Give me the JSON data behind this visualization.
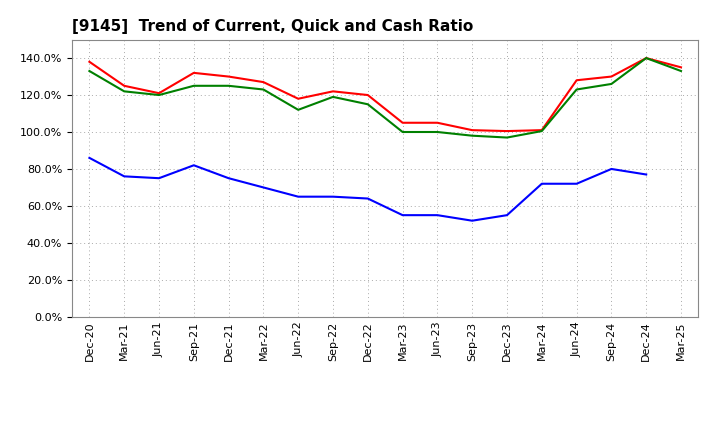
{
  "title": "[9145]  Trend of Current, Quick and Cash Ratio",
  "x_labels": [
    "Dec-20",
    "Mar-21",
    "Jun-21",
    "Sep-21",
    "Dec-21",
    "Mar-22",
    "Jun-22",
    "Sep-22",
    "Dec-22",
    "Mar-23",
    "Jun-23",
    "Sep-23",
    "Dec-23",
    "Mar-24",
    "Jun-24",
    "Sep-24",
    "Dec-24",
    "Mar-25"
  ],
  "current_ratio": [
    138.0,
    125.0,
    121.0,
    132.0,
    130.0,
    127.0,
    118.0,
    122.0,
    120.0,
    105.0,
    105.0,
    101.0,
    100.5,
    101.0,
    128.0,
    130.0,
    140.0,
    135.0
  ],
  "quick_ratio": [
    133.0,
    122.0,
    120.0,
    125.0,
    125.0,
    123.0,
    112.0,
    119.0,
    115.0,
    100.0,
    100.0,
    98.0,
    97.0,
    100.5,
    123.0,
    126.0,
    140.0,
    133.0
  ],
  "cash_ratio": [
    86.0,
    76.0,
    75.0,
    82.0,
    75.0,
    70.0,
    65.0,
    65.0,
    64.0,
    55.0,
    55.0,
    52.0,
    55.0,
    72.0,
    72.0,
    80.0,
    77.0,
    null
  ],
  "current_color": "#ff0000",
  "quick_color": "#008000",
  "cash_color": "#0000ff",
  "ylim": [
    0,
    150
  ],
  "yticks": [
    0,
    20,
    40,
    60,
    80,
    100,
    120,
    140
  ],
  "background_color": "#ffffff",
  "grid_color": "#aaaaaa",
  "title_fontsize": 11,
  "label_fontsize": 8,
  "legend_fontsize": 9,
  "line_width": 1.5
}
